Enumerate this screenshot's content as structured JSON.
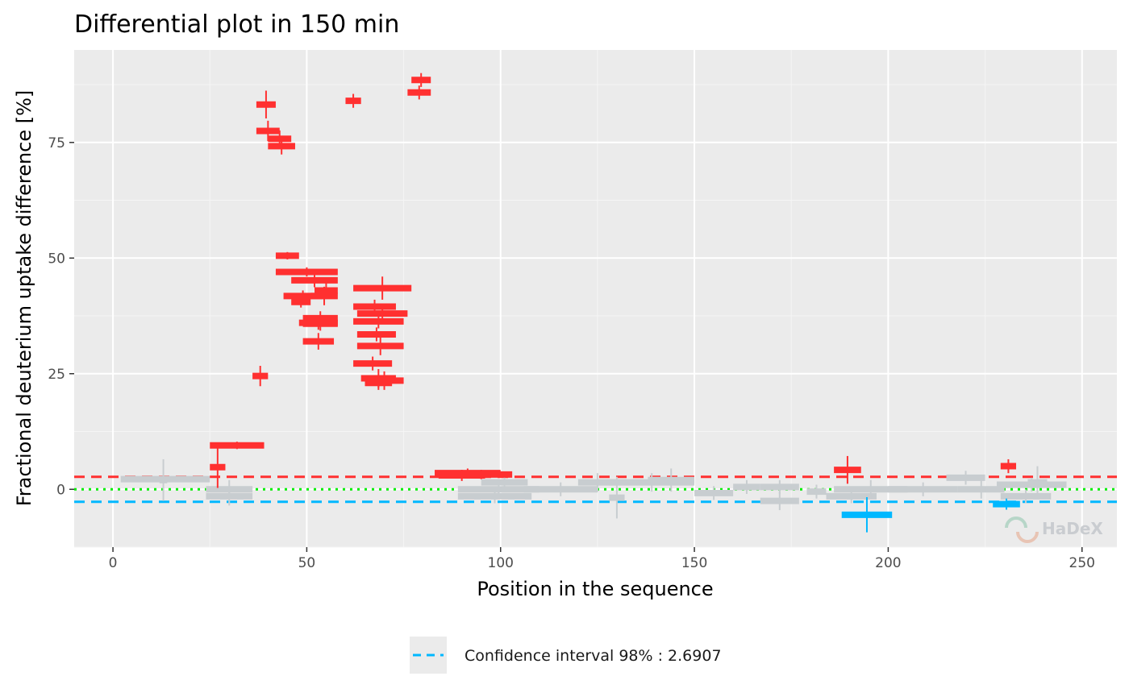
{
  "chart_data": {
    "type": "scatter",
    "title": "Differential plot in 150 min",
    "xlabel": "Position in the sequence",
    "ylabel": "Fractional deuterium uptake difference [%]",
    "xlim": [
      -10,
      259
    ],
    "ylim": [
      -12.5,
      95
    ],
    "x_ticks": [
      0,
      50,
      100,
      150,
      200,
      250
    ],
    "y_ticks": [
      0,
      25,
      50,
      75
    ],
    "grid": true,
    "thresholds": {
      "confidence_interval_value": 2.6907,
      "upper": 2.6907,
      "lower": -2.6907,
      "zero": 0
    },
    "legend": {
      "position": "bottom",
      "label": "Confidence interval 98% : 2.6907"
    },
    "watermark": "HaDeX",
    "colors": {
      "significant_positive": "#ff3030",
      "significant_negative": "#00b8ff",
      "insignificant": "#c8cdd0",
      "zero_line": "#00ee00",
      "panel_background": "#ebebeb"
    },
    "series": [
      {
        "color_key": "significant_positive",
        "peptides": [
          {
            "start": 25,
            "end": 29,
            "value": 4.8,
            "err": 4.5
          },
          {
            "start": 25,
            "end": 39,
            "value": 9.5,
            "err": 0.8
          },
          {
            "start": 36,
            "end": 40,
            "value": 24.5,
            "err": 2.2
          },
          {
            "start": 37,
            "end": 42,
            "value": 83.2,
            "err": 3.0
          },
          {
            "start": 37,
            "end": 43,
            "value": 77.5,
            "err": 2.2
          },
          {
            "start": 40,
            "end": 46,
            "value": 75.8,
            "err": 1.8
          },
          {
            "start": 40,
            "end": 47,
            "value": 74.2,
            "err": 1.8
          },
          {
            "start": 42,
            "end": 48,
            "value": 50.5,
            "err": 0.8
          },
          {
            "start": 42,
            "end": 58,
            "value": 47.0,
            "err": 1.0
          },
          {
            "start": 44,
            "end": 54,
            "value": 41.8,
            "err": 1.2
          },
          {
            "start": 46,
            "end": 51,
            "value": 40.5,
            "err": 1.2
          },
          {
            "start": 46,
            "end": 58,
            "value": 45.2,
            "err": 1.5
          },
          {
            "start": 48,
            "end": 58,
            "value": 36.0,
            "err": 1.5
          },
          {
            "start": 49,
            "end": 58,
            "value": 37.0,
            "err": 1.5
          },
          {
            "start": 49,
            "end": 58,
            "value": 35.8,
            "err": 1.5
          },
          {
            "start": 49,
            "end": 57,
            "value": 32.0,
            "err": 1.8
          },
          {
            "start": 51,
            "end": 58,
            "value": 41.8,
            "err": 2.0
          },
          {
            "start": 52,
            "end": 58,
            "value": 43.0,
            "err": 1.8
          },
          {
            "start": 60,
            "end": 64,
            "value": 84.0,
            "err": 1.5
          },
          {
            "start": 62,
            "end": 77,
            "value": 43.5,
            "err": 2.5
          },
          {
            "start": 62,
            "end": 73,
            "value": 39.5,
            "err": 1.5
          },
          {
            "start": 62,
            "end": 75,
            "value": 36.3,
            "err": 1.5
          },
          {
            "start": 62,
            "end": 72,
            "value": 27.2,
            "err": 1.5
          },
          {
            "start": 63,
            "end": 76,
            "value": 38.0,
            "err": 2.0
          },
          {
            "start": 63,
            "end": 75,
            "value": 31.0,
            "err": 2.0
          },
          {
            "start": 63,
            "end": 73,
            "value": 33.5,
            "err": 1.5
          },
          {
            "start": 64,
            "end": 73,
            "value": 24.0,
            "err": 2.0
          },
          {
            "start": 65,
            "end": 75,
            "value": 23.5,
            "err": 2.0
          },
          {
            "start": 65,
            "end": 72,
            "value": 23.0,
            "err": 1.5
          },
          {
            "start": 76,
            "end": 82,
            "value": 85.8,
            "err": 1.5
          },
          {
            "start": 77,
            "end": 82,
            "value": 88.5,
            "err": 1.5
          },
          {
            "start": 83,
            "end": 100,
            "value": 3.5,
            "err": 1.0
          },
          {
            "start": 84,
            "end": 96,
            "value": 3.0,
            "err": 1.2
          },
          {
            "start": 87,
            "end": 103,
            "value": 3.2,
            "err": 1.0
          },
          {
            "start": 186,
            "end": 193,
            "value": 4.2,
            "err": 3.0
          },
          {
            "start": 229,
            "end": 233,
            "value": 5.0,
            "err": 1.5
          }
        ]
      },
      {
        "color_key": "significant_negative",
        "peptides": [
          {
            "start": 188,
            "end": 201,
            "value": -5.5,
            "err": 3.8
          },
          {
            "start": 227,
            "end": 234,
            "value": -3.2,
            "err": 1.2
          }
        ]
      },
      {
        "color_key": "insignificant",
        "peptides": [
          {
            "start": 2,
            "end": 25,
            "value": 2.2,
            "err": 0.5
          },
          {
            "start": 12,
            "end": 14,
            "value": 2.0,
            "err": 4.5
          },
          {
            "start": 24,
            "end": 36,
            "value": 0.0,
            "err": 2.0
          },
          {
            "start": 24,
            "end": 36,
            "value": -1.5,
            "err": 2.0
          },
          {
            "start": 89,
            "end": 110,
            "value": 0.0,
            "err": 2.0
          },
          {
            "start": 89,
            "end": 108,
            "value": -1.5,
            "err": 1.5
          },
          {
            "start": 95,
            "end": 107,
            "value": 1.5,
            "err": 1.2
          },
          {
            "start": 106,
            "end": 125,
            "value": 0.0,
            "err": 1.5
          },
          {
            "start": 120,
            "end": 130,
            "value": 1.5,
            "err": 2.0
          },
          {
            "start": 128,
            "end": 132,
            "value": -1.8,
            "err": 4.5
          },
          {
            "start": 128,
            "end": 150,
            "value": 1.5,
            "err": 2.0
          },
          {
            "start": 138,
            "end": 150,
            "value": 2.0,
            "err": 2.5
          },
          {
            "start": 150,
            "end": 160,
            "value": -0.8,
            "err": 1.5
          },
          {
            "start": 160,
            "end": 167,
            "value": 0.5,
            "err": 1.5
          },
          {
            "start": 167,
            "end": 177,
            "value": -2.5,
            "err": 2.0
          },
          {
            "start": 167,
            "end": 177,
            "value": 0.5,
            "err": 1.5
          },
          {
            "start": 179,
            "end": 184,
            "value": -0.5,
            "err": 1.5
          },
          {
            "start": 184,
            "end": 197,
            "value": -1.5,
            "err": 1.5
          },
          {
            "start": 186,
            "end": 205,
            "value": 0.0,
            "err": 2.0
          },
          {
            "start": 200,
            "end": 218,
            "value": 0.0,
            "err": 1.5
          },
          {
            "start": 215,
            "end": 225,
            "value": 2.5,
            "err": 1.5
          },
          {
            "start": 218,
            "end": 230,
            "value": 0.0,
            "err": 2.0
          },
          {
            "start": 228,
            "end": 246,
            "value": 1.0,
            "err": 1.5
          },
          {
            "start": 229,
            "end": 242,
            "value": -1.5,
            "err": 1.5
          },
          {
            "start": 236,
            "end": 241,
            "value": 1.5,
            "err": 3.5
          }
        ]
      }
    ]
  }
}
